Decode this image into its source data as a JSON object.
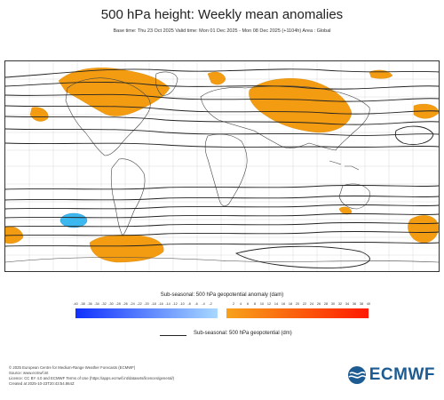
{
  "title": "500 hPa height: Weekly mean anomalies",
  "subtitle": "Base time: Thu 23 Oct 2025 Valid time: Mon 01 Dec 2025 - Mon 08 Dec 2025 (+1104h) Area : Global",
  "legend": {
    "title": "Sub-seasonal: 500 hPa geopotential anomaly (dam)",
    "negative_ticks": [
      "-40",
      "-38",
      "-36",
      "-34",
      "-32",
      "-30",
      "-28",
      "-26",
      "-24",
      "-22",
      "-20",
      "-18",
      "-16",
      "-14",
      "-12",
      "-10",
      "-8",
      "-6",
      "-4",
      "-2"
    ],
    "positive_ticks": [
      "2",
      "4",
      "6",
      "8",
      "10",
      "12",
      "14",
      "16",
      "18",
      "20",
      "22",
      "24",
      "26",
      "28",
      "30",
      "32",
      "34",
      "36",
      "38",
      "40"
    ],
    "negative_color_start": "#1030ff",
    "negative_color_end": "#a8d8ff",
    "positive_color_start": "#f7a21b",
    "positive_color_end": "#ff1a00"
  },
  "contour_legend": "Sub-seasonal: 500 hPa geopotential (dm)",
  "anomaly_colors": {
    "positive": "#f39c12",
    "negative": "#3bb8f0",
    "land": "#555555",
    "contour": "#222222"
  },
  "footer": [
    "© 2025 European Centre for Medium-Range Weather Forecasts (ECMWF)",
    "Source: www.ecmwf.int",
    "Licence: CC BY 4.0 and ECMWF Terms of Use (https://apps.ecmwf.int/datasets/licences/general/)",
    "Created at 2025-10-23T20:43:54.864Z"
  ],
  "logo_text": "ECMWF"
}
